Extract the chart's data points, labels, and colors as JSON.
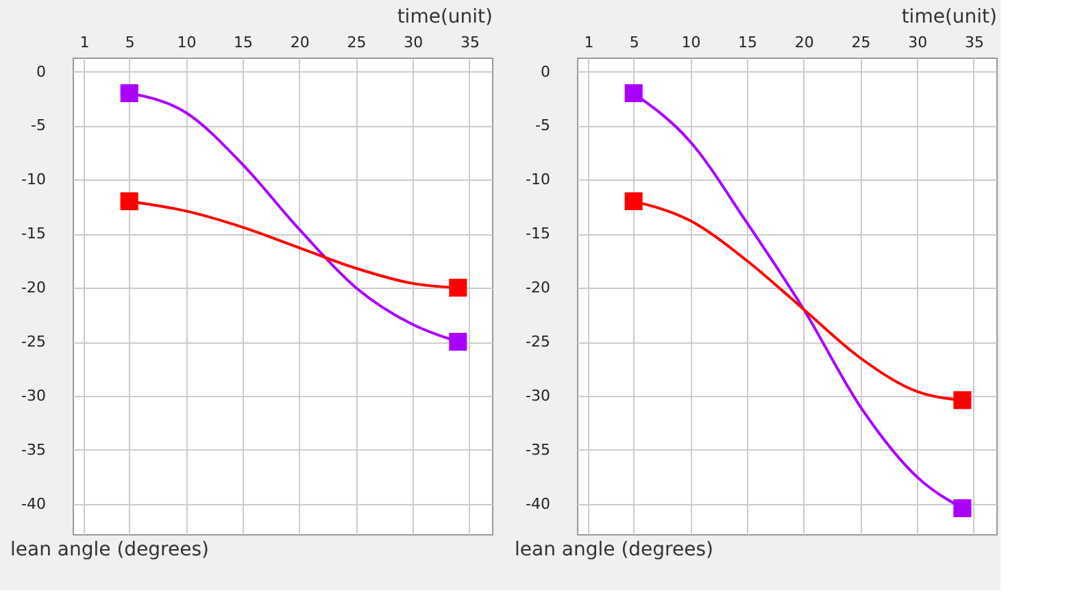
{
  "chart_data": [
    {
      "type": "line",
      "xlabel": "time(unit)",
      "ylabel": "lean angle (degrees)",
      "xlim": [
        0,
        37
      ],
      "ylim": [
        -42.8,
        1.3
      ],
      "xticks": [
        1,
        5,
        10,
        15,
        20,
        25,
        30,
        35
      ],
      "yticks": [
        0,
        -5,
        -10,
        -15,
        -20,
        -25,
        -30,
        -35,
        -40
      ],
      "grid": true,
      "marker": "none",
      "line_style": "solid",
      "series": [
        {
          "color": "#aa00ff",
          "x": [
            5,
            10,
            15,
            20,
            25,
            30,
            34
          ],
          "values": [
            -2,
            -3.8,
            -8.6,
            -14.6,
            -20,
            -23.4,
            -25
          ]
        },
        {
          "color": "#ff0000",
          "x": [
            5,
            10,
            15,
            20,
            25,
            30,
            34
          ],
          "values": [
            -12,
            -12.9,
            -14.4,
            -16.3,
            -18.2,
            -19.6,
            -20
          ]
        },
        {
          "type": "scatter",
          "marker": "square",
          "color": "#aa00ff",
          "x": [
            5,
            34
          ],
          "values": [
            -2,
            -25
          ]
        },
        {
          "type": "scatter",
          "marker": "square",
          "color": "#ff0000",
          "x": [
            5,
            34
          ],
          "values": [
            -12,
            -20
          ]
        }
      ]
    },
    {
      "type": "line",
      "xlabel": "time(unit)",
      "ylabel": "lean angle (degrees)",
      "xlim": [
        0,
        37
      ],
      "ylim": [
        -42.8,
        1.3
      ],
      "xticks": [
        1,
        5,
        10,
        15,
        20,
        25,
        30,
        35
      ],
      "yticks": [
        0,
        -5,
        -10,
        -15,
        -20,
        -25,
        -30,
        -35,
        -40
      ],
      "grid": true,
      "marker": "none",
      "line_style": "solid",
      "series": [
        {
          "color": "#aa00ff",
          "x": [
            5,
            10,
            15,
            20,
            25,
            30,
            34
          ],
          "values": [
            -2,
            -6.5,
            -14,
            -22,
            -31,
            -37.5,
            -40.4
          ]
        },
        {
          "color": "#ff0000",
          "x": [
            5,
            10,
            15,
            20,
            25,
            30,
            34
          ],
          "values": [
            -12,
            -13.8,
            -17.5,
            -22,
            -26.5,
            -29.6,
            -30.4
          ]
        },
        {
          "type": "scatter",
          "marker": "square",
          "color": "#aa00ff",
          "x": [
            5,
            34
          ],
          "values": [
            -2,
            -40.4
          ]
        },
        {
          "type": "scatter",
          "marker": "square",
          "color": "#ff0000",
          "x": [
            5,
            34
          ],
          "values": [
            -12,
            -30.4
          ]
        }
      ]
    }
  ]
}
